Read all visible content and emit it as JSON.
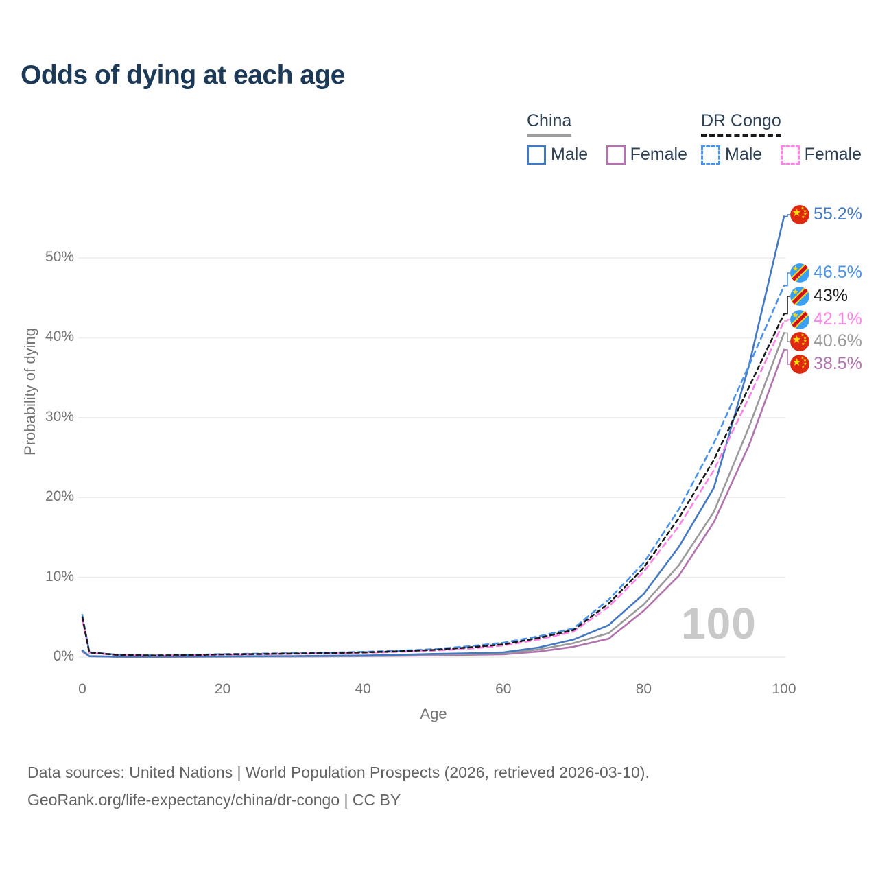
{
  "header": {
    "title": "Odds of dying at each age"
  },
  "legend": {
    "groups": [
      {
        "name": "China",
        "line_style": "solid",
        "underline_color": "#9e9e9e",
        "items": [
          {
            "label": "Male",
            "color": "#4478c1"
          },
          {
            "label": "Female",
            "color": "#b173ae"
          }
        ]
      },
      {
        "name": "DR Congo",
        "line_style": "dashed",
        "underline_color": "#1a1a1a",
        "items": [
          {
            "label": "Male",
            "color": "#4b92ea"
          },
          {
            "label": "Female",
            "color": "#ff82e8"
          }
        ]
      }
    ]
  },
  "flags": {
    "china": {
      "red": "#de2910",
      "yellow": "#ffde00"
    },
    "dr_congo": {
      "blue": "#3aa0f4",
      "red": "#ce1021",
      "yellow": "#f7d618"
    }
  },
  "chart_data": {
    "type": "line",
    "title": "Odds of dying at each age",
    "xlabel": "Age",
    "ylabel": "Probability of dying",
    "x_ticks": [
      0,
      20,
      40,
      60,
      80,
      100
    ],
    "y_ticks": [
      "0%",
      "10%",
      "20%",
      "30%",
      "40%",
      "50%"
    ],
    "xlim": [
      0,
      100
    ],
    "ylim": [
      0,
      55.5
    ],
    "grid": "horizontal-only",
    "legend_position": "top-right",
    "watermark": "100",
    "x": [
      0,
      1,
      5,
      10,
      15,
      20,
      25,
      30,
      35,
      40,
      45,
      50,
      55,
      60,
      65,
      70,
      75,
      80,
      85,
      90,
      95,
      100
    ],
    "series": [
      {
        "id": "china-female",
        "name": "China Female",
        "country": "China",
        "sex": "Female",
        "color": "#b173ae",
        "dash": "solid",
        "flag": "china",
        "end_label": "38.5%",
        "values": [
          0.7,
          0.1,
          0.04,
          0.03,
          0.04,
          0.05,
          0.07,
          0.08,
          0.09,
          0.12,
          0.16,
          0.22,
          0.28,
          0.35,
          0.7,
          1.3,
          2.3,
          5.8,
          10.2,
          16.9,
          26.5,
          38.5
        ]
      },
      {
        "id": "china-both",
        "name": "China Both sexes",
        "country": "China",
        "sex": "Both sexes",
        "color": "#9a9a9a",
        "dash": "solid",
        "flag": "china",
        "end_label": "40.6%",
        "values": [
          0.78,
          0.11,
          0.045,
          0.035,
          0.05,
          0.07,
          0.09,
          0.1,
          0.12,
          0.16,
          0.22,
          0.31,
          0.38,
          0.48,
          0.95,
          1.75,
          3.0,
          6.6,
          11.5,
          18.2,
          28.8,
          40.6
        ]
      },
      {
        "id": "china-male",
        "name": "China Male",
        "country": "China",
        "sex": "Male",
        "color": "#4478c1",
        "dash": "solid",
        "flag": "china",
        "end_label": "55.2%",
        "values": [
          0.85,
          0.12,
          0.05,
          0.04,
          0.06,
          0.09,
          0.11,
          0.13,
          0.16,
          0.2,
          0.28,
          0.4,
          0.48,
          0.6,
          1.2,
          2.2,
          4.0,
          7.9,
          13.8,
          21.2,
          36.5,
          55.2
        ]
      },
      {
        "id": "drc-male",
        "name": "DR Congo Male",
        "country": "DR Congo",
        "sex": "Male",
        "color": "#4b92ea",
        "dash": "dashed",
        "flag": "dr_congo",
        "end_label": "46.5%",
        "values": [
          5.3,
          0.62,
          0.3,
          0.22,
          0.28,
          0.38,
          0.44,
          0.5,
          0.57,
          0.66,
          0.8,
          1.0,
          1.35,
          1.8,
          2.6,
          3.6,
          7.2,
          11.8,
          18.5,
          26.8,
          36.5,
          46.5
        ]
      },
      {
        "id": "drc-female",
        "name": "DR Congo Female",
        "country": "DR Congo",
        "sex": "Female",
        "color": "#ff82e8",
        "dash": "dashed",
        "flag": "dr_congo",
        "end_label": "42.1%",
        "values": [
          4.7,
          0.54,
          0.26,
          0.18,
          0.22,
          0.3,
          0.35,
          0.4,
          0.46,
          0.53,
          0.65,
          0.81,
          1.05,
          1.45,
          2.2,
          3.2,
          6.3,
          10.7,
          16.4,
          23.4,
          32.5,
          42.1
        ]
      },
      {
        "id": "drc-both",
        "name": "DR Congo Both sexes",
        "country": "DR Congo",
        "sex": "Both sexes",
        "color": "#1a1a1a",
        "dash": "dashed",
        "flag": "dr_congo",
        "end_label": "43%",
        "values": [
          5.0,
          0.58,
          0.28,
          0.2,
          0.25,
          0.34,
          0.39,
          0.45,
          0.51,
          0.59,
          0.72,
          0.9,
          1.2,
          1.6,
          2.4,
          3.4,
          6.7,
          11.2,
          17.4,
          24.7,
          33.8,
          43.0
        ]
      }
    ]
  },
  "footer": {
    "line1": "Data sources: United Nations | World Population Prospects (2026, retrieved 2026-03-10).",
    "line2": "GeoRank.org/life-expectancy/china/dr-congo | CC BY"
  }
}
